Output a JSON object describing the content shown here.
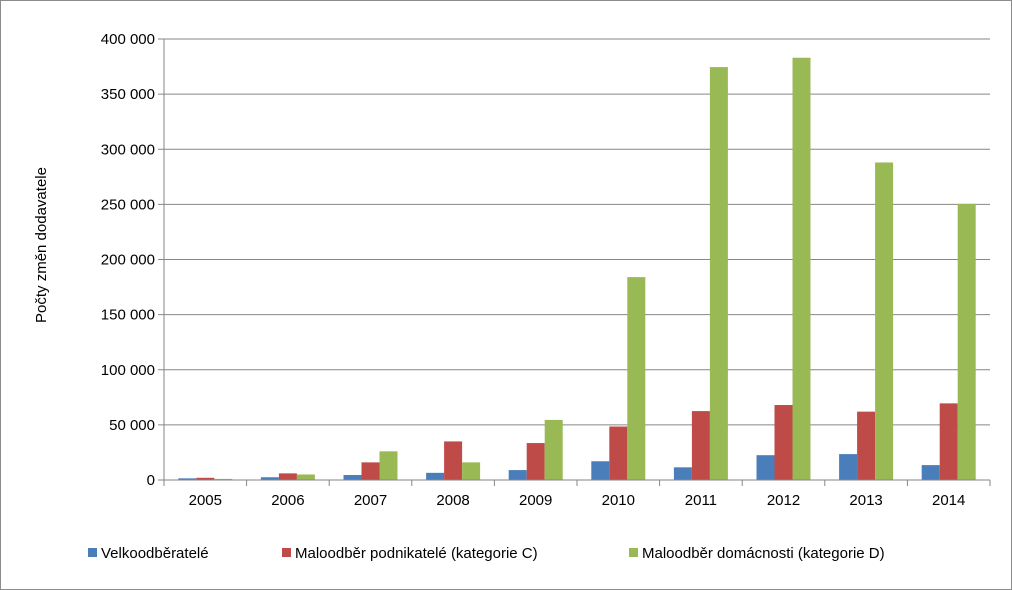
{
  "chart_data": {
    "type": "bar",
    "title": "",
    "xlabel": "",
    "ylabel": "Počty změn dodavatele",
    "categories": [
      "2005",
      "2006",
      "2007",
      "2008",
      "2009",
      "2010",
      "2011",
      "2012",
      "2013",
      "2014"
    ],
    "ylim": [
      0,
      400000
    ],
    "yticks": [
      0,
      50000,
      100000,
      150000,
      200000,
      250000,
      300000,
      350000,
      400000
    ],
    "ytick_labels": [
      "0",
      "50 000",
      "100 000",
      "150 000",
      "200 000",
      "250 000",
      "300 000",
      "350 000",
      "400 000"
    ],
    "grid": "horizontal",
    "legend_position": "bottom",
    "series": [
      {
        "name": "Velkoodběratelé",
        "color": "#4a7ebb",
        "values": [
          1500,
          2500,
          4500,
          6500,
          9000,
          17000,
          11500,
          22500,
          23500,
          13500
        ]
      },
      {
        "name": "Maloodběr podnikatelé (kategorie C)",
        "color": "#be4b48",
        "values": [
          2000,
          6000,
          16000,
          35000,
          33500,
          48500,
          62500,
          68000,
          62000,
          69500
        ]
      },
      {
        "name": "Maloodběr domácnosti (kategorie D)",
        "color": "#98b954",
        "values": [
          1000,
          5000,
          26000,
          16000,
          54500,
          184000,
          374500,
          383000,
          288000,
          250500
        ]
      }
    ]
  }
}
